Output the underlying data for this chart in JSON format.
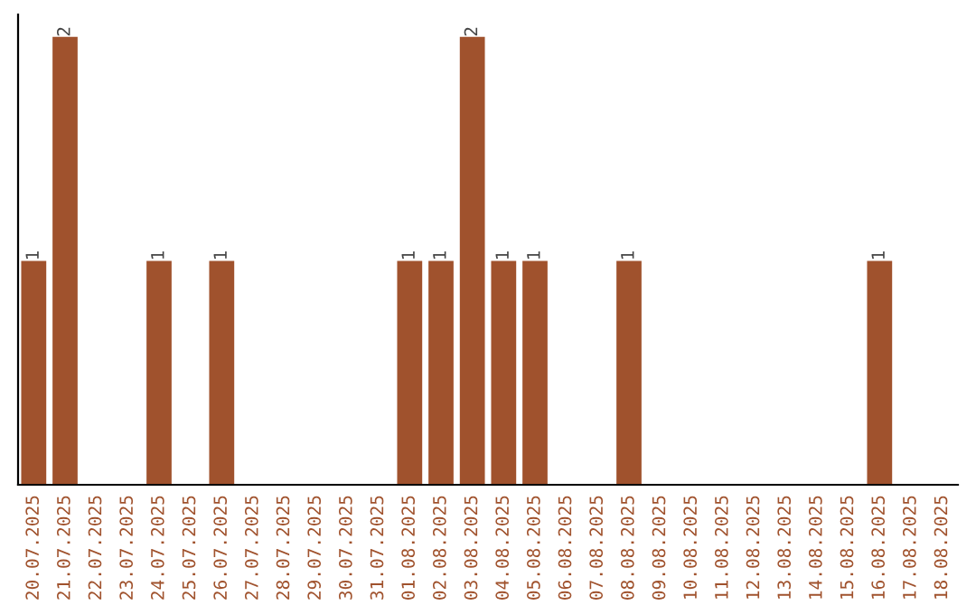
{
  "chart_data": {
    "type": "bar",
    "categories": [
      "20.07.2025",
      "21.07.2025",
      "22.07.2025",
      "23.07.2025",
      "24.07.2025",
      "25.07.2025",
      "26.07.2025",
      "27.07.2025",
      "28.07.2025",
      "29.07.2025",
      "30.07.2025",
      "31.07.2025",
      "01.08.2025",
      "02.08.2025",
      "03.08.2025",
      "04.08.2025",
      "05.08.2025",
      "06.08.2025",
      "07.08.2025",
      "08.08.2025",
      "09.08.2025",
      "10.08.2025",
      "11.08.2025",
      "12.08.2025",
      "13.08.2025",
      "14.08.2025",
      "15.08.2025",
      "16.08.2025",
      "17.08.2025",
      "18.08.2025"
    ],
    "values": [
      1,
      2,
      0,
      0,
      1,
      0,
      1,
      0,
      0,
      0,
      0,
      0,
      1,
      1,
      2,
      1,
      1,
      0,
      0,
      1,
      0,
      0,
      0,
      0,
      0,
      0,
      0,
      1,
      0,
      0
    ],
    "value_labels": [
      "1",
      "2",
      null,
      null,
      "1",
      null,
      "1",
      null,
      null,
      null,
      null,
      null,
      "1",
      "1",
      "2",
      "1",
      "1",
      null,
      null,
      "1",
      null,
      null,
      null,
      null,
      null,
      null,
      null,
      "1",
      null,
      null
    ],
    "color": "#a0522d",
    "tick_labels": "x",
    "grid": false,
    "legend": false
  }
}
